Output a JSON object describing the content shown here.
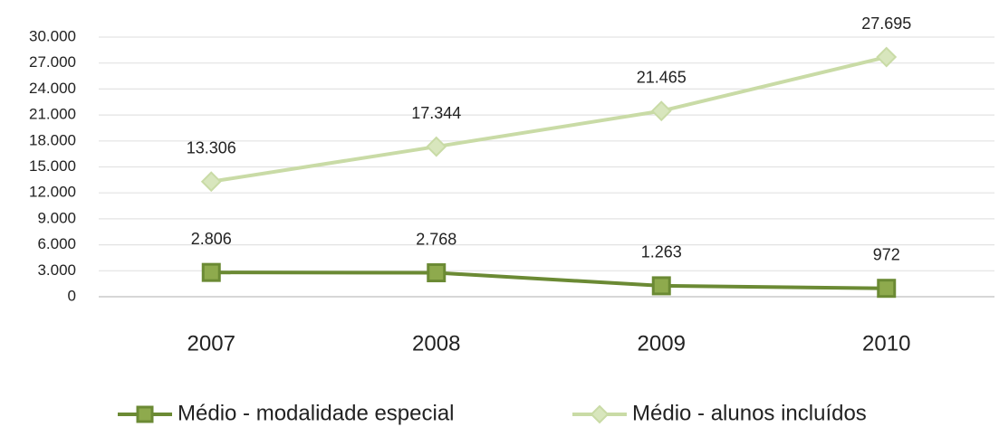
{
  "chart_data": {
    "type": "line",
    "categories": [
      "2007",
      "2008",
      "2009",
      "2010"
    ],
    "series": [
      {
        "name": "Médio - modalidade especial",
        "color": "#6b8a34",
        "marker": "square",
        "values": [
          2806,
          2768,
          1263,
          972
        ],
        "value_labels": [
          "2.806",
          "2.768",
          "1.263",
          "972"
        ]
      },
      {
        "name": "Médio - alunos incluídos",
        "color": "#c9dba6",
        "marker": "diamond",
        "values": [
          13306,
          17344,
          21465,
          27695
        ],
        "value_labels": [
          "13.306",
          "17.344",
          "21.465",
          "27.695"
        ]
      }
    ],
    "ylim": [
      0,
      30000
    ],
    "yticks": [
      0,
      {
        "value": 3000,
        "label": "3.000"
      },
      {
        "value": 6000,
        "label": "6.000"
      },
      {
        "value": 9000,
        "label": "9.000"
      },
      {
        "value": 12000,
        "label": "12.000"
      },
      {
        "value": 15000,
        "label": "15.000"
      },
      {
        "value": 18000,
        "label": "18.000"
      },
      {
        "value": 21000,
        "label": "21.000"
      },
      {
        "value": 24000,
        "label": "24.000"
      },
      {
        "value": 27000,
        "label": "27.000"
      },
      {
        "value": 30000,
        "label": "30.000"
      }
    ],
    "grid": true,
    "legend": "bottom"
  }
}
